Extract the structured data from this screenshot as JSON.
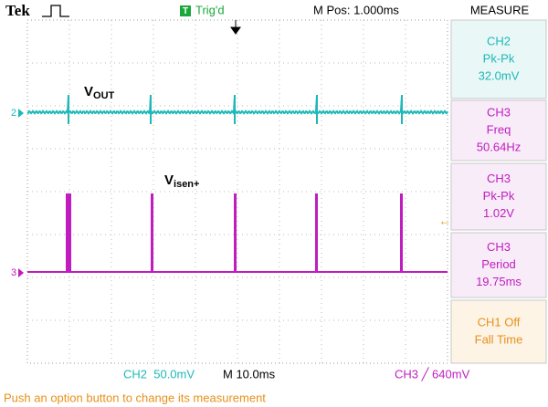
{
  "header": {
    "brand": "Tek",
    "trigger_badge": "T",
    "trigger_state": "Trig'd",
    "position": "M Pos: 1.000ms",
    "menu": "MEASURE"
  },
  "traces": {
    "vout": {
      "main": "V",
      "sub": "OUT"
    },
    "isen": {
      "main": "V",
      "sub": "isen+"
    },
    "ch2_marker": "2",
    "ch3_marker": "3"
  },
  "measurements": [
    {
      "lines": [
        "CH2",
        "Pk-Pk",
        "32.0mV"
      ]
    },
    {
      "lines": [
        "CH3",
        "Freq",
        "50.64Hz"
      ]
    },
    {
      "lines": [
        "CH3",
        "Pk-Pk",
        "1.02V"
      ]
    },
    {
      "lines": [
        "CH3",
        "Period",
        "19.75ms"
      ]
    },
    {
      "lines": [
        "CH1 Off",
        "Fall Time"
      ]
    }
  ],
  "footer": {
    "ch2_scale": "CH2  50.0mV",
    "timebase": "M 10.0ms",
    "ch3_trigger": "CH3 ╱ 640mV",
    "message": "Push an option button to change its measurement"
  }
}
